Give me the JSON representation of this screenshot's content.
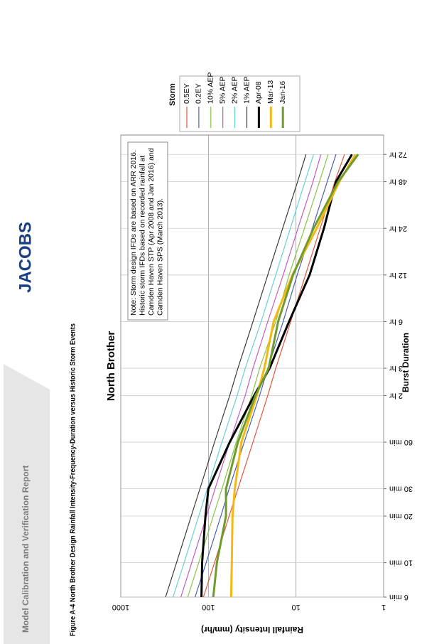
{
  "header": {
    "report_title": "Model Calibration and Verification Report",
    "logo": "JACOBS",
    "figure_caption": "Figure A-4 North Brother Design Rainfall  Intensity-Frequency-Duration versus Historic Storm Events"
  },
  "chart_data": {
    "type": "line",
    "title": "North Brother",
    "x_label": "Burst Duration",
    "y_label": "Rainfall Intensity (mm/hr)",
    "x_log": true,
    "y_log": true,
    "grid": true,
    "xlim": [
      6,
      5760
    ],
    "ylim": [
      1,
      1000
    ],
    "x": [
      6,
      10,
      20,
      30,
      60,
      120,
      180,
      360,
      720,
      1440,
      2880,
      4320
    ],
    "xticks": [
      {
        "value": 6,
        "label": "6 min"
      },
      {
        "value": 10,
        "label": "10 min"
      },
      {
        "value": 20,
        "label": "20 min"
      },
      {
        "value": 30,
        "label": "30 min"
      },
      {
        "value": 60,
        "label": "60 min"
      },
      {
        "value": 120,
        "label": "2 hr"
      },
      {
        "value": 180,
        "label": "3 hr"
      },
      {
        "value": 360,
        "label": "6 hr"
      },
      {
        "value": 720,
        "label": "12 hr"
      },
      {
        "value": 1440,
        "label": "24 hr"
      },
      {
        "value": 2880,
        "label": "48 hr"
      },
      {
        "value": 4320,
        "label": "72 hr"
      }
    ],
    "yticks": [
      1,
      10,
      100,
      1000
    ],
    "legend_title": "Storm",
    "legend_position": "upper right outside",
    "note": [
      "Note: Storm design IFDs are based on ARR 2016.",
      "Historic storm IFDs based on recorded rainfall at",
      "Camden Haven STP (Apr 2008 and Jan 2016) and",
      "Camden Haven SPS (March 2013)."
    ],
    "series": [
      {
        "name": "0.5EY",
        "color": "#e4553e",
        "line_width": 1.2,
        "values": [
          114,
          85,
          58,
          46,
          31,
          21,
          17,
          11.5,
          7.8,
          5.3,
          3.6,
          2.8
        ]
      },
      {
        "name": "0.2EY",
        "color": "#4b5fb3",
        "line_width": 1.2,
        "values": [
          142,
          106,
          72,
          58,
          39,
          26,
          21,
          14,
          9.7,
          6.5,
          4.4,
          3.5
        ]
      },
      {
        "name": "10% AEP",
        "color": "#86c44a",
        "line_width": 1.2,
        "values": [
          172,
          129,
          88,
          70,
          48,
          32,
          26,
          17,
          12,
          8,
          5.4,
          4.3
        ]
      },
      {
        "name": "5% AEP",
        "color": "#c35cc0",
        "line_width": 1.2,
        "values": [
          206,
          155,
          105,
          84,
          57,
          38,
          31,
          21,
          14,
          9.5,
          6.4,
          5.2
        ]
      },
      {
        "name": "2% AEP",
        "color": "#67cfd8",
        "line_width": 1.2,
        "values": [
          253,
          189,
          129,
          103,
          70,
          47,
          38,
          25,
          17,
          11.6,
          7.9,
          6.3
        ]
      },
      {
        "name": "1% AEP",
        "color": "#3a3a3a",
        "line_width": 1.2,
        "values": [
          308,
          231,
          157,
          125,
          85,
          57,
          46,
          31,
          21,
          14.2,
          9.6,
          7.7
        ]
      },
      {
        "name": "Apr-08",
        "color": "#000000",
        "line_width": 3,
        "values": [
          120,
          118,
          108,
          100,
          57,
          30,
          20,
          12,
          7,
          4.8,
          3.5,
          2.3
        ]
      },
      {
        "name": "Mar-13",
        "color": "#f5b811",
        "line_width": 3,
        "values": [
          55,
          54,
          53,
          50,
          42,
          28,
          23,
          18,
          11,
          5.8,
          3.2,
          2.1
        ]
      },
      {
        "name": "Jan-16",
        "color": "#6f9a2d",
        "line_width": 3,
        "values": [
          88,
          80,
          63,
          63,
          46,
          29,
          20.5,
          16,
          10.8,
          6.3,
          3.3,
          1.95
        ]
      }
    ]
  }
}
